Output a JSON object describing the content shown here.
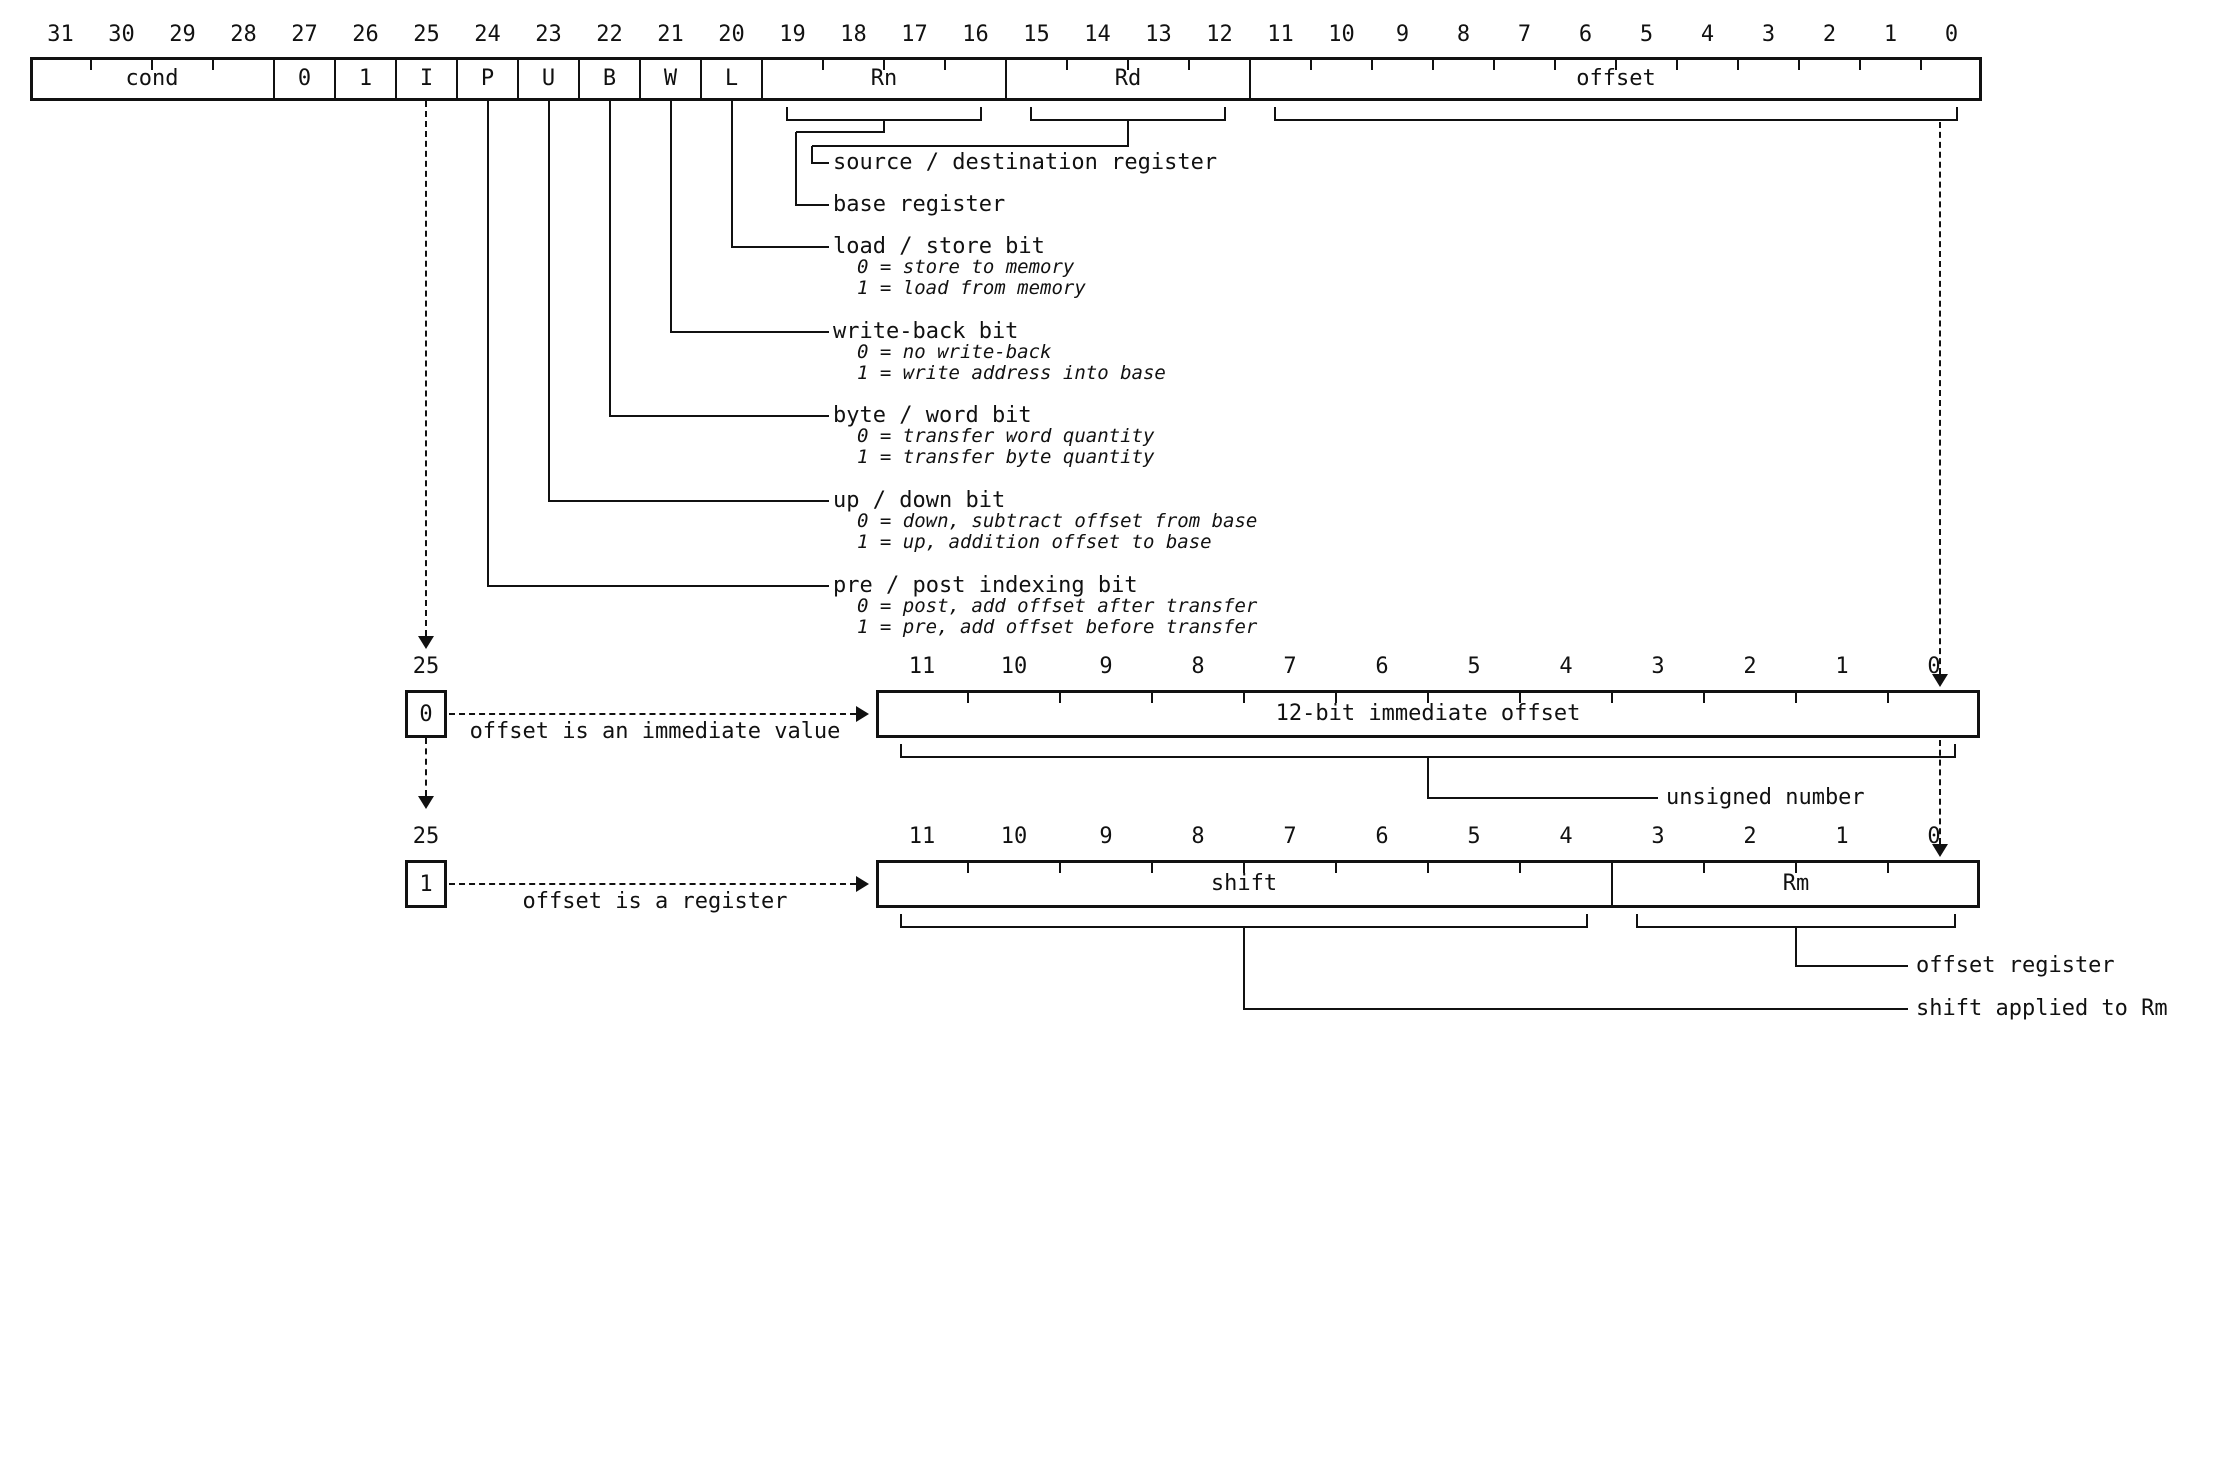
{
  "colors": {
    "ink": "#111111",
    "paper": "#ffffff"
  },
  "main_register": {
    "bit_numbers": [
      "31",
      "30",
      "29",
      "28",
      "27",
      "26",
      "25",
      "24",
      "23",
      "22",
      "21",
      "20",
      "19",
      "18",
      "17",
      "16",
      "15",
      "14",
      "13",
      "12",
      "11",
      "10",
      "9",
      "8",
      "7",
      "6",
      "5",
      "4",
      "3",
      "2",
      "1",
      "0"
    ],
    "fields": [
      {
        "label": "cond",
        "bits": 4
      },
      {
        "label": "0",
        "bits": 1
      },
      {
        "label": "1",
        "bits": 1
      },
      {
        "label": "I",
        "bits": 1
      },
      {
        "label": "P",
        "bits": 1
      },
      {
        "label": "U",
        "bits": 1
      },
      {
        "label": "B",
        "bits": 1
      },
      {
        "label": "W",
        "bits": 1
      },
      {
        "label": "L",
        "bits": 1
      },
      {
        "label": "Rn",
        "bits": 4,
        "brace": true
      },
      {
        "label": "Rd",
        "bits": 4,
        "brace": true
      },
      {
        "label": "offset",
        "bits": 12,
        "brace": true
      }
    ]
  },
  "annotations": [
    {
      "label": "source / destination register",
      "notes": []
    },
    {
      "label": "base register",
      "notes": []
    },
    {
      "label": "load / store bit",
      "notes": [
        "0 = store to memory",
        "1 = load from memory"
      ]
    },
    {
      "label": "write-back bit",
      "notes": [
        "0 = no write-back",
        "1 = write address into base"
      ]
    },
    {
      "label": "byte / word bit",
      "notes": [
        "0 = transfer word quantity",
        "1 = transfer byte quantity"
      ]
    },
    {
      "label": "up / down bit",
      "notes": [
        "0 = down, subtract offset from base",
        "1 = up, addition offset to base"
      ]
    },
    {
      "label": "pre / post indexing bit",
      "notes": [
        "0 = post, add offset after transfer",
        "1 = pre, add offset before transfer"
      ]
    }
  ],
  "sub_bit_numbers": [
    "11",
    "10",
    "9",
    "8",
    "7",
    "6",
    "5",
    "4",
    "3",
    "2",
    "1",
    "0"
  ],
  "immediate_row": {
    "bit_label": "25",
    "bit_value": "0",
    "arrow_text": "offset is an immediate value",
    "fields": [
      {
        "label": "12-bit immediate offset",
        "bits": 12,
        "brace": true
      }
    ],
    "brace_label": "unsigned number"
  },
  "register_row": {
    "bit_label": "25",
    "bit_value": "1",
    "arrow_text": "offset is a register",
    "fields": [
      {
        "label": "shift",
        "bits": 8,
        "brace": true
      },
      {
        "label": "Rm",
        "bits": 4,
        "brace": true
      }
    ],
    "rm_label": "offset register",
    "shift_label": "shift applied to Rm"
  }
}
